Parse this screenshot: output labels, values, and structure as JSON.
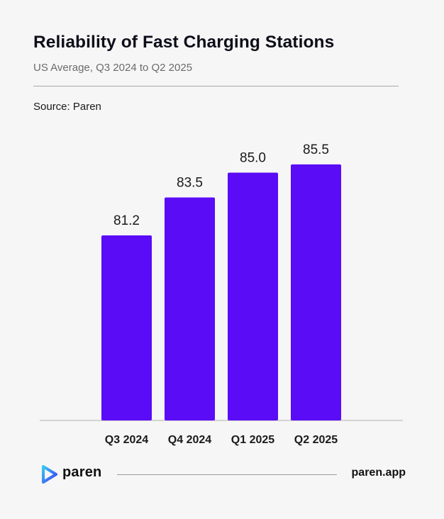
{
  "header": {
    "title": "Reliability of Fast Charging Stations",
    "subtitle": "US Average, Q3 2024 to Q2 2025",
    "source": "Source: Paren"
  },
  "footer": {
    "brand": "paren",
    "url": "paren.app",
    "logo_icon": "paren-logo-icon"
  },
  "colors": {
    "bar": "#5a0cf6",
    "background": "#f6f6f6"
  },
  "chart_data": {
    "type": "bar",
    "categories": [
      "Q3 2024",
      "Q4 2024",
      "Q1 2025",
      "Q2 2025"
    ],
    "values": [
      81.2,
      83.5,
      85.0,
      85.5
    ],
    "value_labels": [
      "81.2",
      "83.5",
      "85.0",
      "85.5"
    ],
    "title": "Reliability of Fast Charging Stations",
    "subtitle": "US Average, Q3 2024 to Q2 2025",
    "xlabel": "",
    "ylabel": "",
    "ylim": [
      70,
      86
    ],
    "grid": false,
    "legend": "none"
  }
}
